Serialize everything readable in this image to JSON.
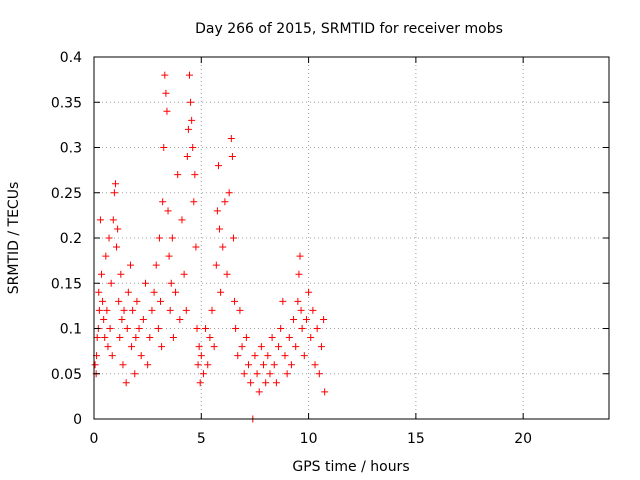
{
  "chart_data": {
    "type": "scatter",
    "title": "Day 266 of 2015, SRMTID for receiver mobs",
    "xlabel": "GPS time / hours",
    "ylabel": "SRMTID / TECUs",
    "xlim": [
      0,
      24
    ],
    "ylim": [
      0,
      0.4
    ],
    "xticks": [
      0,
      5,
      10,
      15,
      20
    ],
    "xtick_labels": [
      "0",
      "5",
      "10",
      "15",
      "20"
    ],
    "yticks": [
      0,
      0.05,
      0.1,
      0.15,
      0.2,
      0.25,
      0.3,
      0.35,
      0.4
    ],
    "ytick_labels": [
      "0",
      "0.05",
      "0.1",
      "0.15",
      "0.2",
      "0.25",
      "0.3",
      "0.35",
      "0.4"
    ],
    "grid": true,
    "marker": "+",
    "color": "#ff0000",
    "series": [
      {
        "name": "SRMTID",
        "points": [
          [
            0.05,
            0.06
          ],
          [
            0.1,
            0.05
          ],
          [
            0.12,
            0.07
          ],
          [
            0.15,
            0.09
          ],
          [
            0.2,
            0.1
          ],
          [
            0.22,
            0.14
          ],
          [
            0.25,
            0.12
          ],
          [
            0.3,
            0.22
          ],
          [
            0.35,
            0.16
          ],
          [
            0.4,
            0.13
          ],
          [
            0.45,
            0.11
          ],
          [
            0.5,
            0.09
          ],
          [
            0.55,
            0.18
          ],
          [
            0.6,
            0.12
          ],
          [
            0.65,
            0.08
          ],
          [
            0.7,
            0.2
          ],
          [
            0.75,
            0.1
          ],
          [
            0.8,
            0.15
          ],
          [
            0.85,
            0.07
          ],
          [
            0.9,
            0.22
          ],
          [
            0.95,
            0.25
          ],
          [
            1.0,
            0.26
          ],
          [
            1.05,
            0.19
          ],
          [
            1.1,
            0.21
          ],
          [
            1.15,
            0.13
          ],
          [
            1.2,
            0.09
          ],
          [
            1.25,
            0.16
          ],
          [
            1.3,
            0.11
          ],
          [
            1.35,
            0.06
          ],
          [
            1.4,
            0.12
          ],
          [
            1.5,
            0.04
          ],
          [
            1.55,
            0.1
          ],
          [
            1.6,
            0.14
          ],
          [
            1.7,
            0.17
          ],
          [
            1.75,
            0.08
          ],
          [
            1.8,
            0.12
          ],
          [
            1.9,
            0.05
          ],
          [
            1.95,
            0.09
          ],
          [
            2.0,
            0.13
          ],
          [
            2.1,
            0.1
          ],
          [
            2.2,
            0.07
          ],
          [
            2.3,
            0.11
          ],
          [
            2.4,
            0.15
          ],
          [
            2.5,
            0.06
          ],
          [
            2.6,
            0.09
          ],
          [
            2.7,
            0.12
          ],
          [
            2.8,
            0.14
          ],
          [
            2.9,
            0.17
          ],
          [
            3.0,
            0.1
          ],
          [
            3.05,
            0.2
          ],
          [
            3.1,
            0.13
          ],
          [
            3.15,
            0.08
          ],
          [
            3.2,
            0.24
          ],
          [
            3.25,
            0.3
          ],
          [
            3.3,
            0.38
          ],
          [
            3.35,
            0.36
          ],
          [
            3.4,
            0.34
          ],
          [
            3.45,
            0.23
          ],
          [
            3.5,
            0.18
          ],
          [
            3.55,
            0.12
          ],
          [
            3.6,
            0.15
          ],
          [
            3.65,
            0.2
          ],
          [
            3.7,
            0.09
          ],
          [
            3.8,
            0.14
          ],
          [
            3.9,
            0.27
          ],
          [
            4.0,
            0.11
          ],
          [
            4.1,
            0.22
          ],
          [
            4.2,
            0.16
          ],
          [
            4.3,
            0.12
          ],
          [
            4.35,
            0.29
          ],
          [
            4.4,
            0.32
          ],
          [
            4.45,
            0.38
          ],
          [
            4.5,
            0.35
          ],
          [
            4.55,
            0.33
          ],
          [
            4.6,
            0.3
          ],
          [
            4.65,
            0.24
          ],
          [
            4.7,
            0.27
          ],
          [
            4.75,
            0.19
          ],
          [
            4.8,
            0.1
          ],
          [
            4.85,
            0.06
          ],
          [
            4.9,
            0.08
          ],
          [
            4.95,
            0.04
          ],
          [
            5.0,
            0.07
          ],
          [
            5.1,
            0.05
          ],
          [
            5.2,
            0.1
          ],
          [
            5.3,
            0.06
          ],
          [
            5.4,
            0.09
          ],
          [
            5.5,
            0.12
          ],
          [
            5.6,
            0.08
          ],
          [
            5.7,
            0.17
          ],
          [
            5.75,
            0.23
          ],
          [
            5.8,
            0.28
          ],
          [
            5.85,
            0.21
          ],
          [
            5.9,
            0.14
          ],
          [
            6.0,
            0.19
          ],
          [
            6.1,
            0.24
          ],
          [
            6.2,
            0.16
          ],
          [
            6.3,
            0.25
          ],
          [
            6.4,
            0.31
          ],
          [
            6.45,
            0.29
          ],
          [
            6.5,
            0.2
          ],
          [
            6.55,
            0.13
          ],
          [
            6.6,
            0.1
          ],
          [
            6.7,
            0.07
          ],
          [
            6.8,
            0.12
          ],
          [
            6.9,
            0.08
          ],
          [
            7.0,
            0.05
          ],
          [
            7.1,
            0.09
          ],
          [
            7.2,
            0.06
          ],
          [
            7.3,
            0.04
          ],
          [
            7.4,
            0.0
          ],
          [
            7.5,
            0.07
          ],
          [
            7.6,
            0.05
          ],
          [
            7.7,
            0.03
          ],
          [
            7.8,
            0.08
          ],
          [
            7.9,
            0.06
          ],
          [
            8.0,
            0.04
          ],
          [
            8.1,
            0.07
          ],
          [
            8.2,
            0.05
          ],
          [
            8.3,
            0.09
          ],
          [
            8.4,
            0.06
          ],
          [
            8.5,
            0.04
          ],
          [
            8.6,
            0.08
          ],
          [
            8.7,
            0.1
          ],
          [
            8.8,
            0.13
          ],
          [
            8.9,
            0.07
          ],
          [
            9.0,
            0.05
          ],
          [
            9.1,
            0.09
          ],
          [
            9.2,
            0.06
          ],
          [
            9.3,
            0.11
          ],
          [
            9.4,
            0.08
          ],
          [
            9.5,
            0.13
          ],
          [
            9.55,
            0.16
          ],
          [
            9.6,
            0.18
          ],
          [
            9.65,
            0.12
          ],
          [
            9.7,
            0.1
          ],
          [
            9.8,
            0.07
          ],
          [
            9.9,
            0.11
          ],
          [
            10.0,
            0.14
          ],
          [
            10.1,
            0.09
          ],
          [
            10.2,
            0.12
          ],
          [
            10.3,
            0.06
          ],
          [
            10.4,
            0.1
          ],
          [
            10.5,
            0.05
          ],
          [
            10.6,
            0.08
          ],
          [
            10.7,
            0.11
          ],
          [
            10.75,
            0.03
          ]
        ]
      }
    ]
  }
}
